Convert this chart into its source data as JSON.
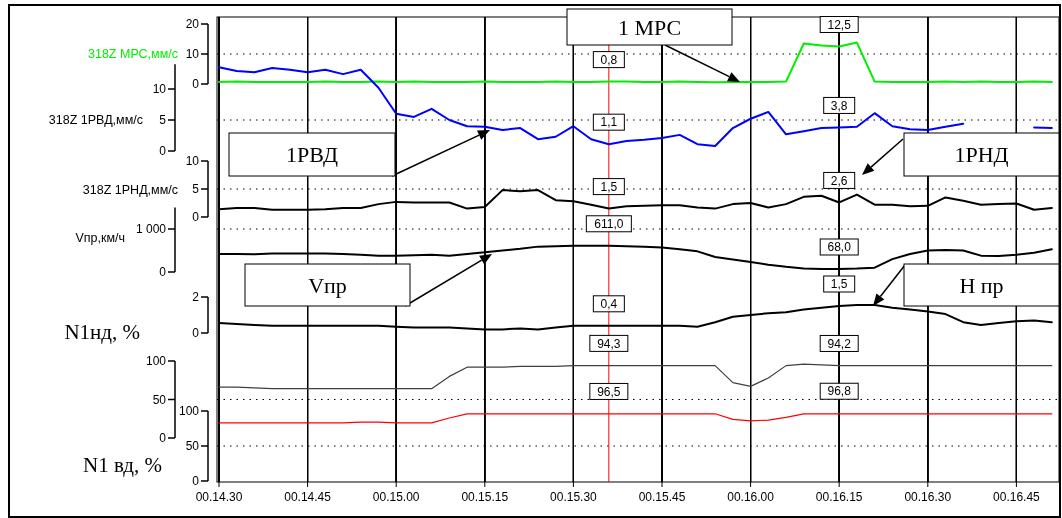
{
  "chart_data": [
    {
      "type": "line",
      "ylabel": "318Z МРС,мм/с",
      "tick_labels": "y",
      "grid": "x",
      "ref_lines": [
        {
          "axis": "y",
          "value": 10,
          "color": "#000000",
          "line_style": "dotted"
        }
      ],
      "ylim": [
        0,
        20
      ],
      "yticks": [
        0,
        10,
        20
      ],
      "categories": [
        "00.14.30",
        null,
        null,
        null,
        null,
        "00.14.45",
        null,
        null,
        null,
        null,
        "00.15.00",
        null,
        null,
        null,
        null,
        "00.15.15",
        null,
        null,
        null,
        null,
        "00.15.30",
        null,
        null,
        null,
        null,
        "00.15.45",
        null,
        null,
        null,
        null,
        "00.16.00",
        null,
        null,
        null,
        null,
        "00.16.15",
        null,
        null,
        null,
        null,
        "00.16.30",
        null,
        null,
        null,
        null,
        "00.16.45",
        null,
        null
      ],
      "series": [
        {
          "color": "#00ee00",
          "values": [
            0.7,
            0.8,
            0.7,
            0.7,
            0.7,
            0.7,
            0.8,
            0.7,
            0.7,
            0.8,
            0.7,
            0.8,
            0.7,
            0.7,
            0.7,
            0.8,
            0.7,
            0.7,
            0.7,
            0.8,
            0.7,
            0.7,
            0.8,
            0.8,
            0.7,
            0.7,
            0.8,
            0.7,
            0.6,
            0.7,
            0.7,
            0.7,
            0.8,
            13.5,
            12.8,
            12.5,
            13.8,
            0.8,
            0.7,
            0.7,
            0.7,
            0.8,
            0.7,
            0.8,
            0.7,
            0.7,
            0.8,
            0.7
          ]
        }
      ],
      "annotations": [
        {
          "text": "0,8",
          "y": 0.8
        },
        {
          "text": "12,5",
          "y": 12.5
        },
        "1 МРС"
      ]
    },
    {
      "type": "line",
      "ylabel": "318Z 1РВД,мм/с",
      "tick_labels": "y",
      "grid": "x",
      "ref_lines": [
        {
          "axis": "y",
          "value": 5,
          "color": "#000000",
          "line_style": "dotted"
        }
      ],
      "ylim": [
        0,
        14
      ],
      "yticks": [
        0,
        5,
        10
      ],
      "categories": [
        "00.14.30",
        null,
        null,
        null,
        null,
        "00.14.45",
        null,
        null,
        null,
        null,
        "00.15.00",
        null,
        null,
        null,
        null,
        "00.15.15",
        null,
        null,
        null,
        null,
        "00.15.30",
        null,
        null,
        null,
        null,
        "00.15.45",
        null,
        null,
        null,
        null,
        "00.16.00",
        null,
        null,
        null,
        null,
        "00.16.15",
        null,
        null,
        null,
        null,
        "00.16.30",
        null,
        null,
        null,
        null,
        "00.16.45",
        null,
        null
      ],
      "series": [
        {
          "color": "#0000ff",
          "values": [
            13.5,
            12.9,
            12.7,
            13.4,
            13.1,
            12.7,
            13.1,
            12.4,
            13.1,
            10.2,
            6.0,
            5.5,
            6.8,
            5.0,
            4.0,
            3.9,
            3.4,
            3.7,
            1.9,
            2.3,
            4.0,
            1.9,
            1.1,
            1.6,
            1.8,
            2.1,
            2.6,
            1.1,
            0.8,
            3.7,
            5.2,
            6.3,
            2.7,
            3.2,
            3.7,
            3.8,
            3.9,
            6.1,
            4.0,
            3.5,
            3.4,
            3.9,
            4.4,
            null,
            null,
            null,
            3.8,
            3.7
          ]
        }
      ],
      "annotations": [
        {
          "text": "1,1",
          "y": 1.1
        },
        {
          "text": "3,8",
          "y": 3.8
        },
        "1РВД"
      ]
    },
    {
      "type": "line",
      "ylabel": "318Z 1РНД,мм/с",
      "tick_labels": "y",
      "grid": "x",
      "ref_lines": [
        {
          "axis": "y",
          "value": 5,
          "color": "#000000",
          "line_style": "dotted"
        }
      ],
      "ylim": [
        0,
        10
      ],
      "yticks": [
        0,
        5,
        10
      ],
      "categories": [
        "00.14.30",
        null,
        null,
        null,
        null,
        "00.14.45",
        null,
        null,
        null,
        null,
        "00.15.00",
        null,
        null,
        null,
        null,
        "00.15.15",
        null,
        null,
        null,
        null,
        "00.15.30",
        null,
        null,
        null,
        null,
        "00.15.45",
        null,
        null,
        null,
        null,
        "00.16.00",
        null,
        null,
        null,
        null,
        "00.16.15",
        null,
        null,
        null,
        null,
        "00.16.30",
        null,
        null,
        null,
        null,
        "00.16.45",
        null,
        null
      ],
      "series": [
        {
          "color": "#000000",
          "values": [
            1.4,
            1.6,
            1.6,
            1.3,
            1.3,
            1.3,
            1.4,
            1.6,
            1.6,
            2.3,
            2.7,
            2.6,
            2.6,
            2.6,
            1.5,
            1.8,
            4.8,
            4.6,
            4.8,
            3.0,
            2.8,
            2.2,
            1.5,
            1.9,
            2.0,
            2.1,
            2.1,
            1.7,
            1.5,
            2.3,
            2.5,
            1.7,
            2.3,
            3.6,
            3.8,
            2.6,
            4.0,
            2.2,
            2.2,
            1.9,
            2.0,
            3.5,
            2.9,
            2.2,
            2.3,
            2.4,
            1.3,
            1.6
          ]
        }
      ],
      "annotations": [
        {
          "text": "1,5",
          "y": 1.5
        },
        {
          "text": "2,6",
          "y": 2.6
        },
        "1РНД"
      ]
    },
    {
      "type": "line",
      "ylabel": "Vпр,км/ч",
      "tick_labels": "y",
      "grid": "x",
      "ref_lines": [
        {
          "axis": "y",
          "value": 1000,
          "color": "#000000",
          "line_style": "dotted"
        }
      ],
      "ylim": [
        0,
        1500
      ],
      "yticks": [
        0,
        {
          "value": 1000,
          "label": "1 000"
        }
      ],
      "categories": [
        "00.14.30",
        null,
        null,
        null,
        null,
        "00.14.45",
        null,
        null,
        null,
        null,
        "00.15.00",
        null,
        null,
        null,
        null,
        "00.15.15",
        null,
        null,
        null,
        null,
        "00.15.30",
        null,
        null,
        null,
        null,
        "00.15.45",
        null,
        null,
        null,
        null,
        "00.16.00",
        null,
        null,
        null,
        null,
        "00.16.15",
        null,
        null,
        null,
        null,
        "00.16.30",
        null,
        null,
        null,
        null,
        "00.16.45",
        null,
        null
      ],
      "series": [
        {
          "color": "#000000",
          "values": [
            420,
            420,
            410,
            430,
            430,
            430,
            430,
            420,
            400,
            380,
            380,
            390,
            400,
            380,
            420,
            460,
            500,
            540,
            590,
            600,
            610,
            610,
            610,
            600,
            590,
            570,
            530,
            480,
            350,
            290,
            230,
            170,
            120,
            80,
            70,
            70,
            80,
            100,
            300,
            420,
            500,
            510,
            500,
            380,
            370,
            400,
            450,
            530
          ]
        }
      ],
      "annotations": [
        {
          "text": "611,0",
          "y": 610
        },
        {
          "text": "68,0",
          "y": 70
        },
        "Vпр"
      ]
    },
    {
      "type": "line",
      "tick_labels": "y",
      "grid": "x",
      "ylim": [
        0,
        2
      ],
      "yticks": [
        0,
        2
      ],
      "categories": [
        "00.14.30",
        null,
        null,
        null,
        null,
        "00.14.45",
        null,
        null,
        null,
        null,
        "00.15.00",
        null,
        null,
        null,
        null,
        "00.15.15",
        null,
        null,
        null,
        null,
        "00.15.30",
        null,
        null,
        null,
        null,
        "00.15.45",
        null,
        null,
        null,
        null,
        "00.16.00",
        null,
        null,
        null,
        null,
        "00.16.15",
        null,
        null,
        null,
        null,
        "00.16.30",
        null,
        null,
        null,
        null,
        "00.16.45",
        null,
        null
      ],
      "series": [
        {
          "color": "#000000",
          "values": [
            0.55,
            0.5,
            0.45,
            0.4,
            0.4,
            0.4,
            0.4,
            0.4,
            0.4,
            0.4,
            0.35,
            0.3,
            0.3,
            0.3,
            0.25,
            0.2,
            0.2,
            0.25,
            0.2,
            0.3,
            0.4,
            0.4,
            0.4,
            0.4,
            0.4,
            0.4,
            0.4,
            0.35,
            0.6,
            0.9,
            1.0,
            1.1,
            1.15,
            1.3,
            1.4,
            1.5,
            1.55,
            1.55,
            1.4,
            1.3,
            1.2,
            1.05,
            0.6,
            0.45,
            0.55,
            0.65,
            0.7,
            0.6
          ]
        }
      ],
      "annotations": [
        {
          "text": "0,4",
          "y": 0.4
        },
        {
          "text": "1,5",
          "y": 1.5
        },
        "H пр"
      ]
    },
    {
      "type": "line",
      "ylabel": "N1нд, %",
      "tick_labels": "y",
      "grid": "x",
      "ref_lines": [
        {
          "axis": "y",
          "value": 50,
          "color": "#000000",
          "line_style": "dotted"
        }
      ],
      "ylim": [
        0,
        100
      ],
      "yticks": [
        0,
        50,
        100
      ],
      "categories": [
        "00.14.30",
        null,
        null,
        null,
        null,
        "00.14.45",
        null,
        null,
        null,
        null,
        "00.15.00",
        null,
        null,
        null,
        null,
        "00.15.15",
        null,
        null,
        null,
        null,
        "00.15.30",
        null,
        null,
        null,
        null,
        "00.15.45",
        null,
        null,
        null,
        null,
        "00.16.00",
        null,
        null,
        null,
        null,
        "00.16.15",
        null,
        null,
        null,
        null,
        "00.16.30",
        null,
        null,
        null,
        null,
        "00.16.45",
        null,
        null
      ],
      "series": [
        {
          "color": "#404040",
          "values": [
            66,
            66,
            65,
            64,
            64,
            64,
            64,
            64,
            64,
            64,
            64,
            64,
            64,
            80,
            92,
            92,
            92,
            93,
            93,
            93,
            94,
            94,
            94,
            94,
            94,
            94,
            94,
            94,
            94,
            72,
            67,
            78,
            94,
            96,
            95,
            94,
            94,
            94,
            94,
            94,
            94,
            94,
            94,
            94,
            94,
            94,
            94,
            94
          ]
        }
      ],
      "annotations": [
        {
          "text": "94,3",
          "y": 94.3
        },
        {
          "text": "94,2",
          "y": 94.2
        }
      ]
    },
    {
      "type": "line",
      "ylabel": "N1 вд, %",
      "grid": "x",
      "ref_lines": [
        {
          "axis": "y",
          "value": 50,
          "color": "#000000",
          "line_style": "dotted"
        }
      ],
      "ylim": [
        0,
        100
      ],
      "yticks": [
        0,
        50,
        100
      ],
      "categories": [
        "00.14.30",
        null,
        null,
        null,
        null,
        "00.14.45",
        null,
        null,
        null,
        null,
        "00.15.00",
        null,
        null,
        null,
        null,
        "00.15.15",
        null,
        null,
        null,
        null,
        "00.15.30",
        null,
        null,
        null,
        null,
        "00.15.45",
        null,
        null,
        null,
        null,
        "00.16.00",
        null,
        null,
        null,
        null,
        "00.16.15",
        null,
        null,
        null,
        null,
        "00.16.30",
        null,
        null,
        null,
        null,
        "00.16.45",
        null,
        null
      ],
      "series": [
        {
          "color": "#ff0000",
          "values": [
            83,
            83,
            83,
            83,
            83,
            83,
            83,
            83,
            84,
            84,
            83,
            83,
            83,
            90,
            96,
            96,
            96,
            96,
            96,
            96,
            96,
            96,
            96,
            96,
            96,
            96,
            96,
            96,
            96,
            88,
            86,
            87,
            91,
            96,
            96,
            96,
            96,
            96,
            96,
            96,
            96,
            96,
            96,
            96,
            96,
            96,
            96,
            96
          ]
        }
      ],
      "annotations": [
        {
          "text": "96,5",
          "y": 96.5
        },
        {
          "text": "96,8",
          "y": 96.8
        }
      ]
    }
  ]
}
